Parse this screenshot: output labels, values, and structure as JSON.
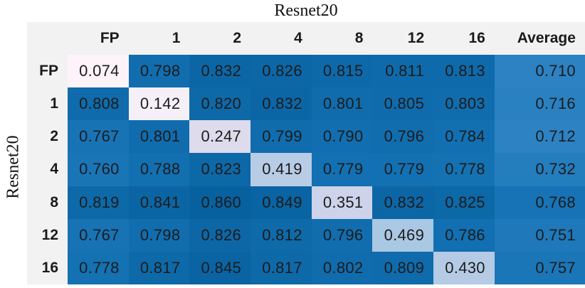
{
  "chart_data": {
    "type": "heatmap",
    "title": "Resnet20",
    "ylabel": "Resnet20",
    "xlabel": "",
    "columns": [
      "FP",
      "1",
      "2",
      "4",
      "8",
      "12",
      "16"
    ],
    "average_column_label": "Average",
    "rows": [
      {
        "label": "FP",
        "values": [
          "0.074",
          "0.798",
          "0.832",
          "0.826",
          "0.815",
          "0.811",
          "0.813"
        ],
        "average": "0.710"
      },
      {
        "label": "1",
        "values": [
          "0.808",
          "0.142",
          "0.820",
          "0.832",
          "0.801",
          "0.805",
          "0.803"
        ],
        "average": "0.716"
      },
      {
        "label": "2",
        "values": [
          "0.767",
          "0.801",
          "0.247",
          "0.799",
          "0.790",
          "0.796",
          "0.784"
        ],
        "average": "0.712"
      },
      {
        "label": "4",
        "values": [
          "0.760",
          "0.788",
          "0.823",
          "0.419",
          "0.779",
          "0.779",
          "0.778"
        ],
        "average": "0.732"
      },
      {
        "label": "8",
        "values": [
          "0.819",
          "0.841",
          "0.860",
          "0.849",
          "0.351",
          "0.832",
          "0.825"
        ],
        "average": "0.768"
      },
      {
        "label": "12",
        "values": [
          "0.767",
          "0.798",
          "0.826",
          "0.812",
          "0.796",
          "0.469",
          "0.786"
        ],
        "average": "0.751"
      },
      {
        "label": "16",
        "values": [
          "0.778",
          "0.817",
          "0.845",
          "0.817",
          "0.802",
          "0.809",
          "0.430"
        ],
        "average": "0.757"
      }
    ],
    "value_range": [
      0,
      1
    ],
    "grid": false,
    "legend": "none",
    "colorscale_stops": [
      [
        0.07,
        "#fdf3f8"
      ],
      [
        0.15,
        "#f4f0f7"
      ],
      [
        0.25,
        "#dddaec"
      ],
      [
        0.35,
        "#ccd3ea"
      ],
      [
        0.47,
        "#aac7e3"
      ],
      [
        0.6,
        "#64a5d4"
      ],
      [
        0.7,
        "#3085c5"
      ],
      [
        0.78,
        "#1370b2"
      ],
      [
        0.86,
        "#08619f"
      ]
    ]
  },
  "colors": {
    "background": "#ffffff",
    "header_background": "#f3f2f3",
    "cell_text": "#1c1c1c",
    "title_text": "#111111"
  }
}
